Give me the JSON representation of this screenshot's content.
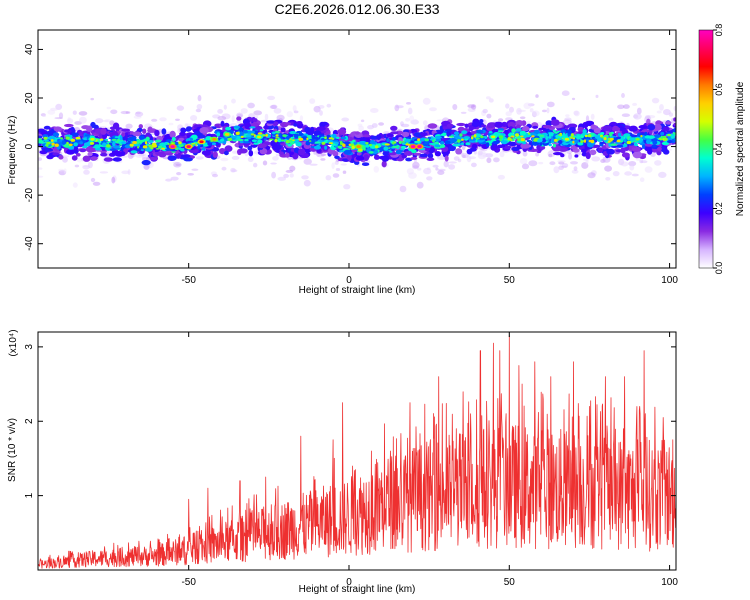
{
  "figure_title": "C2E6.2026.012.06.30.E33",
  "chart_data": [
    {
      "type": "heatmap",
      "xlabel": "Height of straight line (km)",
      "ylabel": "Frequency (Hz)",
      "xlim": [
        -97,
        102
      ],
      "ylim": [
        -50,
        48
      ],
      "x_ticks": [
        "-50",
        "0",
        "50",
        "100"
      ],
      "y_ticks": [
        "40",
        "20",
        "0",
        "-20",
        "-40"
      ],
      "colorbar": {
        "label": "Normalized spectral amplitude",
        "range": [
          0,
          0.8
        ],
        "ticks": [
          "0.0",
          "0.2",
          "0.4",
          "0.6",
          "0.8"
        ],
        "colormap": [
          "#ffffff",
          "#d6b4ff",
          "#8a2be2",
          "#3c00ff",
          "#0040ff",
          "#00b4ff",
          "#00ffd0",
          "#44ff44",
          "#d4ff00",
          "#ffd000",
          "#ff7a00",
          "#ff0000",
          "#ff0060",
          "#ff00c0"
        ]
      },
      "band_center": [
        [
          -97,
          2
        ],
        [
          -80,
          2
        ],
        [
          -65,
          1
        ],
        [
          -55,
          0
        ],
        [
          -45,
          2
        ],
        [
          -35,
          5
        ],
        [
          -25,
          4
        ],
        [
          -15,
          3
        ],
        [
          -5,
          2
        ],
        [
          0,
          0
        ],
        [
          10,
          0
        ],
        [
          20,
          1
        ],
        [
          30,
          3
        ],
        [
          45,
          4
        ],
        [
          60,
          4
        ],
        [
          75,
          3
        ],
        [
          90,
          3
        ],
        [
          102,
          4
        ]
      ],
      "hotspots": [
        {
          "x": -55,
          "y": 0,
          "v": 0.8
        },
        {
          "x": -50,
          "y": 0,
          "v": 0.75
        },
        {
          "x": -46,
          "y": 2,
          "v": 0.7
        },
        {
          "x": -42,
          "y": 3,
          "v": 0.6
        },
        {
          "x": -38,
          "y": 5,
          "v": 0.55
        },
        {
          "x": -28,
          "y": 4,
          "v": 0.5
        },
        {
          "x": -80,
          "y": 3,
          "v": 0.5
        },
        {
          "x": 3,
          "y": 0,
          "v": 0.6
        },
        {
          "x": 20,
          "y": 0,
          "v": 0.8
        },
        {
          "x": 22,
          "y": 0,
          "v": 0.78
        },
        {
          "x": 45,
          "y": 4,
          "v": 0.5
        },
        {
          "x": 68,
          "y": 3,
          "v": 0.5
        },
        {
          "x": 90,
          "y": 3,
          "v": 0.45
        }
      ]
    },
    {
      "type": "line",
      "xlabel": "Height of straight line (km)",
      "ylabel": "SNR (10 * v/v)",
      "y_multiplier": "(x10⁴)",
      "xlim": [
        -97,
        102
      ],
      "ylim": [
        0,
        3.2
      ],
      "x_ticks": [
        "-50",
        "0",
        "50",
        "100"
      ],
      "y_ticks": [
        "3",
        "2",
        "1"
      ],
      "color": "#ee3030",
      "envelope": [
        [
          -97,
          0.12
        ],
        [
          -80,
          0.25
        ],
        [
          -60,
          0.32
        ],
        [
          -50,
          0.45
        ],
        [
          -40,
          0.6
        ],
        [
          -30,
          0.75
        ],
        [
          -20,
          0.9
        ],
        [
          -10,
          1.05
        ],
        [
          0,
          1.2
        ],
        [
          10,
          1.45
        ],
        [
          20,
          1.6
        ],
        [
          30,
          1.75
        ],
        [
          40,
          1.85
        ],
        [
          50,
          1.9
        ],
        [
          60,
          1.85
        ],
        [
          70,
          1.8
        ],
        [
          80,
          1.75
        ],
        [
          90,
          1.7
        ],
        [
          102,
          1.65
        ]
      ],
      "peaks": [
        [
          -50,
          0.95
        ],
        [
          -44,
          1.1
        ],
        [
          -34,
          1.2
        ],
        [
          -26,
          1.25
        ],
        [
          -15,
          1.8
        ],
        [
          -5,
          1.75
        ],
        [
          -2,
          2.25
        ],
        [
          2,
          1.35
        ],
        [
          7,
          1.6
        ],
        [
          13,
          1.6
        ],
        [
          19,
          2.25
        ],
        [
          28,
          2.6
        ],
        [
          38,
          2.1
        ],
        [
          41,
          2.95
        ],
        [
          45,
          3.05
        ],
        [
          47,
          2.95
        ],
        [
          50,
          3.15
        ],
        [
          53,
          2.75
        ],
        [
          58,
          2.8
        ],
        [
          63,
          2.6
        ],
        [
          70,
          2.8
        ],
        [
          75,
          2.2
        ],
        [
          80,
          2.6
        ],
        [
          86,
          2.6
        ],
        [
          92,
          2.95
        ],
        [
          98,
          2.05
        ],
        [
          101,
          1.75
        ]
      ]
    }
  ]
}
